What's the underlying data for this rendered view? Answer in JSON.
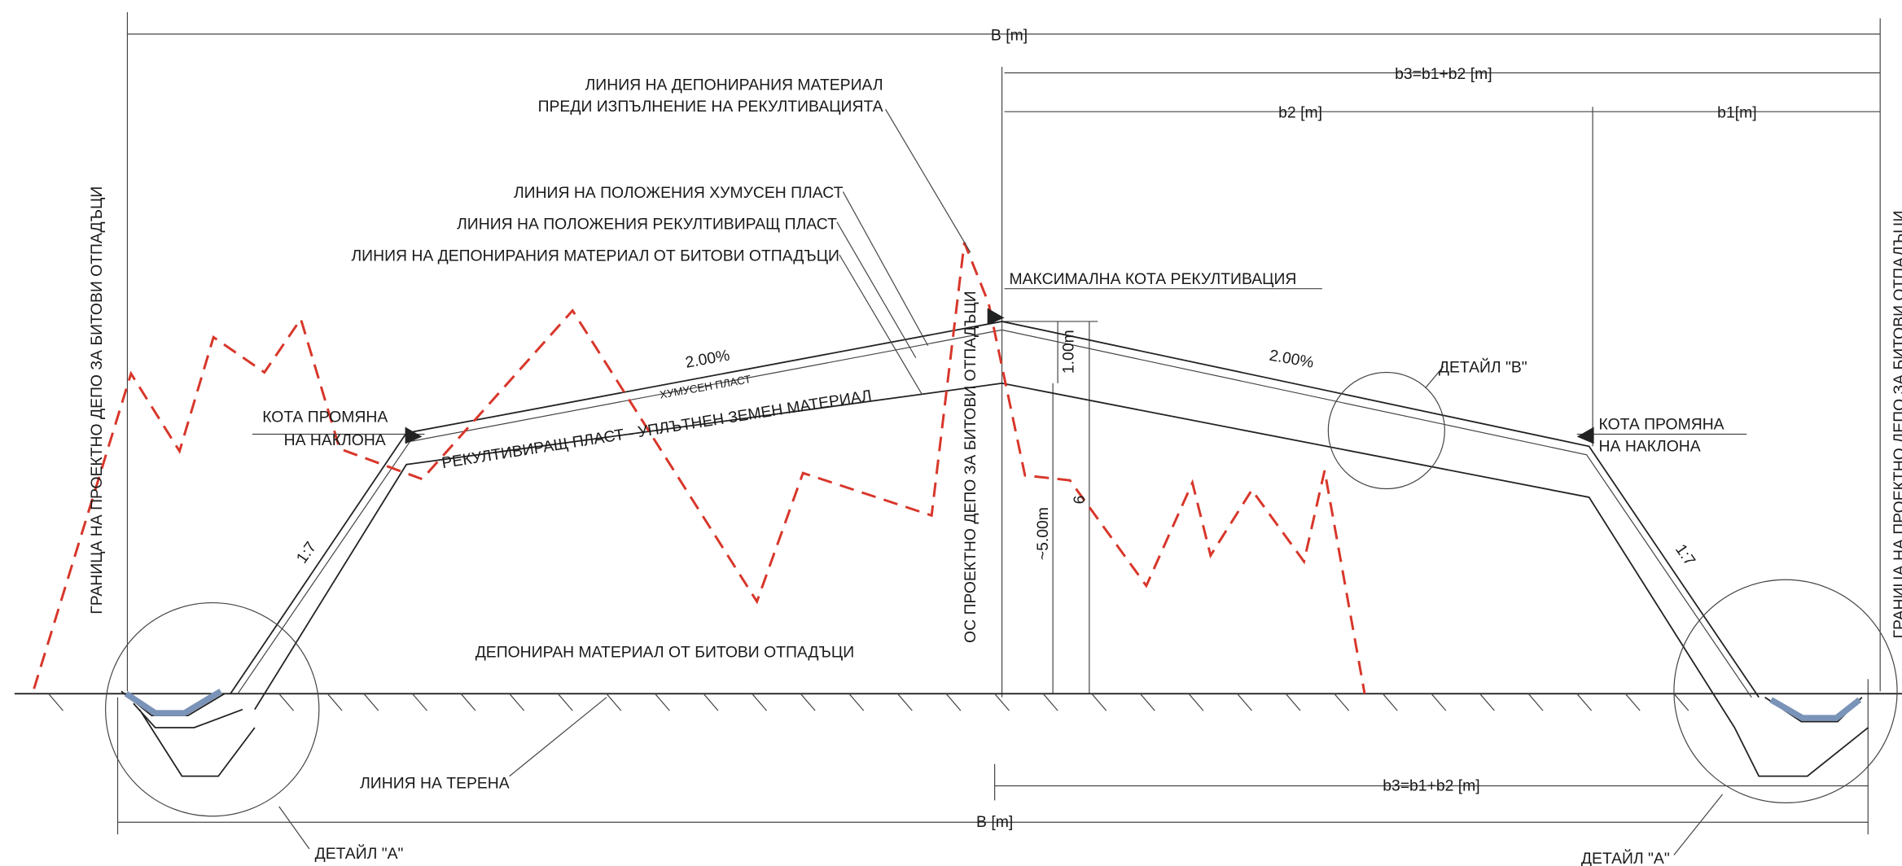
{
  "dimensions": {
    "top_total": "B [m]",
    "top_b3": "b3=b1+b2 [m]",
    "b2": "b2 [m]",
    "b1": "b1[m]",
    "bottom_b3": "b3=b1+b2 [m]",
    "bottom_total": "B [m]",
    "height_top": "1.00m",
    "height_waste": "~5.00m",
    "height_total": "6"
  },
  "labels": {
    "line_before_1": "ЛИНИЯ НА ДЕПОНИРАНИЯ МАТЕРИАЛ",
    "line_before_2": "ПРЕДИ ИЗПЪЛНЕНИЕ НА РЕКУЛТИВАЦИЯТА",
    "humus_line": "ЛИНИЯ НА ПОЛОЖЕНИЯ ХУМУСЕН ПЛАСТ",
    "recult_line": "ЛИНИЯ НА ПОЛОЖЕНИЯ РЕКУЛТИВИРАЩ ПЛАСТ",
    "waste_line": "ЛИНИЯ НА ДЕПОНИРАНИЯ МАТЕРИАЛ ОТ БИТОВИ ОТПАДЪЦИ",
    "max_level": "МАКСИМАЛНА КОТА РЕКУЛТИВАЦИЯ",
    "slope_left": "2.00%",
    "slope_right": "2.00%",
    "humus_layer": "ХУМУСЕН ПЛАСТ",
    "recult_layer": "РЕКУЛТИВИРАЩ ПЛАСТ - УПЛЪТНЕН ЗЕМЕН МАТЕРИАЛ",
    "change_left_1": "КОТА ПРОМЯНА",
    "change_left_2": "НА НАКЛОНА",
    "change_right_1": "КОТА ПРОМЯНА",
    "change_right_2": "НА НАКЛОНА",
    "detail_b": "ДЕТАЙЛ \"В\"",
    "ratio_left": "1:7",
    "ratio_right": "1:7",
    "border_left": "ГРАНИЦА НА ПРОЕКТНО ДЕПО ЗА БИТОВИ ОТПАДЪЦИ",
    "border_right": "ГРАНИЦА НА ПРОЕКТНО ДЕПО ЗА БИТОВИ ОТПАДЪЦИ",
    "axis": "ОС ПРОЕКТНО ДЕПО ЗА БИТОВИ ОТПАДЪЦИ",
    "waste_body": "ДЕПОНИРАН МАТЕРИАЛ ОТ БИТОВИ ОТПАДЪЦИ",
    "terrain": "ЛИНИЯ НА ТЕРЕНА",
    "detail_a_left": "ДЕТАЙЛ \"А\"",
    "detail_a_right": "ДЕТАЙЛ \"А\""
  }
}
